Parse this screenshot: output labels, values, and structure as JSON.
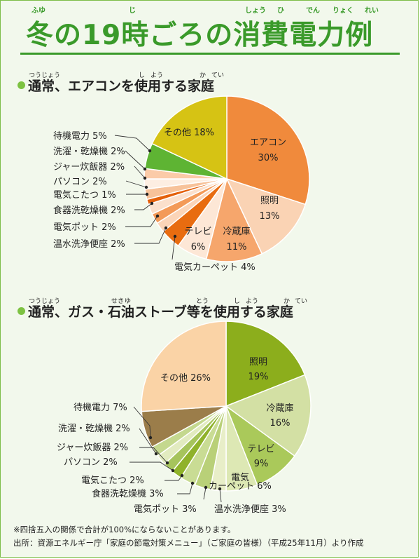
{
  "title": {
    "text": "冬の19時ごろの消費電力例",
    "ruby": [
      "ふゆ",
      "じ",
      "しょう",
      "ひ",
      "でん",
      "りょく",
      "れい"
    ]
  },
  "colors": {
    "title_green": "#3a9a2a",
    "bullet_green": "#7dc242"
  },
  "chart_data": [
    {
      "type": "pie",
      "title": "通常、エアコンを使用する家庭",
      "title_ruby": [
        "つう",
        "じょう",
        "し",
        "よう",
        "か",
        "てい"
      ],
      "slices": [
        {
          "label": "エアコン",
          "value": 30,
          "color": "#f08a3c",
          "label_inside": true
        },
        {
          "label": "照明",
          "value": 13,
          "color": "#fad3b4",
          "label_inside": true
        },
        {
          "label": "冷蔵庫",
          "value": 11,
          "color": "#f6a66c",
          "label_inside": true
        },
        {
          "label": "テレビ",
          "value": 6,
          "color": "#fde7d6",
          "label_inside": true
        },
        {
          "label": "電気カーペット",
          "value": 4,
          "color": "#e86c10"
        },
        {
          "label": "温水洗浄便座",
          "value": 2,
          "color": "#fbd5b8"
        },
        {
          "label": "電気ポット",
          "value": 2,
          "color": "#f39a58"
        },
        {
          "label": "食器洗乾燥機",
          "value": 2,
          "color": "#fbe0cc"
        },
        {
          "label": "電気こたつ",
          "value": 1,
          "color": "#e4600a"
        },
        {
          "label": "パソコン",
          "value": 2,
          "color": "#f7c29a"
        },
        {
          "label": "ジャー炊飯器",
          "value": 2,
          "color": "#fdeee2"
        },
        {
          "label": "洗濯・乾燥機",
          "value": 2,
          "color": "#fbcba8"
        },
        {
          "label": "待機電力",
          "value": 5,
          "color": "#5eb433"
        },
        {
          "label": "その他",
          "value": 18,
          "color": "#d6c314",
          "label_inside": true
        }
      ]
    },
    {
      "type": "pie",
      "title": "通常、ガス・石油ストーブ等を使用する家庭",
      "title_ruby": [
        "つう",
        "じょう",
        "せき",
        "ゆ",
        "とう",
        "し",
        "よう",
        "か",
        "てい"
      ],
      "slices": [
        {
          "label": "照明",
          "value": 19,
          "color": "#8cae1c",
          "label_inside": true
        },
        {
          "label": "冷蔵庫",
          "value": 16,
          "color": "#d3e0a4",
          "label_inside": true
        },
        {
          "label": "テレビ",
          "value": 9,
          "color": "#aac95a",
          "label_inside": true
        },
        {
          "label": "電気カーペット",
          "value": 6,
          "color": "#dde8b4",
          "label_inside": true
        },
        {
          "label": "温水洗浄便座",
          "value": 3,
          "color": "#e8eec8"
        },
        {
          "label": "電気ポット",
          "value": 3,
          "color": "#b9d078"
        },
        {
          "label": "食器洗乾燥機",
          "value": 3,
          "color": "#c9dc94"
        },
        {
          "label": "電気こたつ",
          "value": 2,
          "color": "#8fb22a"
        },
        {
          "label": "パソコン",
          "value": 2,
          "color": "#a6c45c"
        },
        {
          "label": "ジャー炊飯器",
          "value": 2,
          "color": "#e2ebc0"
        },
        {
          "label": "洗濯・乾燥機",
          "value": 2,
          "color": "#c4d88e"
        },
        {
          "label": "待機電力",
          "value": 7,
          "color": "#9b7d4a"
        },
        {
          "label": "その他",
          "value": 26,
          "color": "#fad3a6",
          "label_inside": true
        }
      ]
    }
  ],
  "footnotes": {
    "note": "※四捨五入の関係で合計が100%にならないことがあります。",
    "source": "出所：資源エネルギー庁「家庭の節電対策メニュー」（ご家庭の皆様）（平成25年11月）より作成"
  }
}
